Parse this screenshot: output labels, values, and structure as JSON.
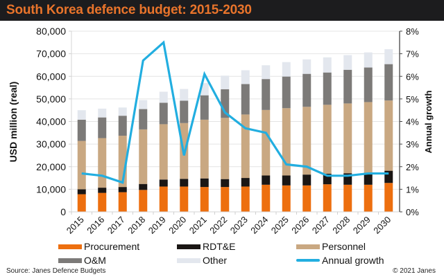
{
  "title": "South Korea defence budget: 2015-2030",
  "source": "Source: Janes Defence Budgets",
  "copyright": "© 2021 Janes",
  "colors": {
    "procurement": "#ed6f0f",
    "rdte": "#1a1614",
    "personnel": "#c9a882",
    "om": "#7c7a78",
    "other": "#e3e7ee",
    "growth": "#22aee0",
    "title": "#e9742b"
  },
  "chart_data": {
    "type": "bar",
    "stacked": true,
    "title": "South Korea defence budget: 2015-2030",
    "categories": [
      "2015",
      "2016",
      "2017",
      "2018",
      "2019",
      "2020",
      "2021",
      "2022",
      "2023",
      "2024",
      "2025",
      "2026",
      "2027",
      "2028",
      "2029",
      "2030"
    ],
    "ylabel": "USD million (real)",
    "ylim": [
      0,
      80000
    ],
    "yticks": [
      0,
      10000,
      20000,
      30000,
      40000,
      50000,
      60000,
      70000,
      80000
    ],
    "ytick_labels": [
      "0",
      "10,000",
      "20,000",
      "30,000",
      "40,000",
      "50,000",
      "60,000",
      "70,000",
      "80,000"
    ],
    "y2label": "Annual growth",
    "y2lim": [
      0,
      8
    ],
    "y2ticks": [
      0,
      1,
      2,
      3,
      4,
      5,
      6,
      7,
      8
    ],
    "y2tick_labels": [
      "0%",
      "1%",
      "2%",
      "3%",
      "4%",
      "5%",
      "6%",
      "7%",
      "8%"
    ],
    "grid": true,
    "legend_position": "bottom",
    "series": [
      {
        "name": "Procurement",
        "key": "procurement",
        "type": "bar",
        "values": [
          7800,
          8400,
          8700,
          9700,
          11200,
          11200,
          11000,
          11000,
          11200,
          12000,
          11700,
          11700,
          12200,
          12000,
          12000,
          12800
        ]
      },
      {
        "name": "RDT&E",
        "key": "rdte",
        "type": "bar",
        "values": [
          2200,
          2300,
          2300,
          2650,
          3100,
          3400,
          3800,
          3500,
          3800,
          4100,
          4400,
          4800,
          4700,
          5100,
          5300,
          5400
        ]
      },
      {
        "name": "Personnel",
        "key": "personnel",
        "type": "bar",
        "values": [
          21400,
          21950,
          22700,
          24150,
          24500,
          24700,
          26000,
          27100,
          28100,
          29000,
          29800,
          30000,
          30500,
          30900,
          31300,
          31100
        ]
      },
      {
        "name": "O&M",
        "key": "om",
        "type": "bar",
        "values": [
          9400,
          9150,
          8850,
          9000,
          9500,
          9900,
          10800,
          12700,
          13500,
          13700,
          14000,
          14600,
          14300,
          14900,
          15300,
          16100
        ]
      },
      {
        "name": "Other",
        "key": "other",
        "type": "bar",
        "values": [
          4200,
          3900,
          3650,
          4000,
          4900,
          5200,
          5400,
          6000,
          6100,
          6100,
          6400,
          6400,
          6700,
          6500,
          6700,
          6600
        ]
      },
      {
        "name": "Annual growth",
        "key": "growth",
        "type": "line",
        "axis": "right",
        "unit": "%",
        "values": [
          1.7,
          1.6,
          1.3,
          6.7,
          7.5,
          2.5,
          6.1,
          4.4,
          3.7,
          3.5,
          2.1,
          2.0,
          1.6,
          1.6,
          1.7,
          1.7
        ]
      }
    ]
  }
}
